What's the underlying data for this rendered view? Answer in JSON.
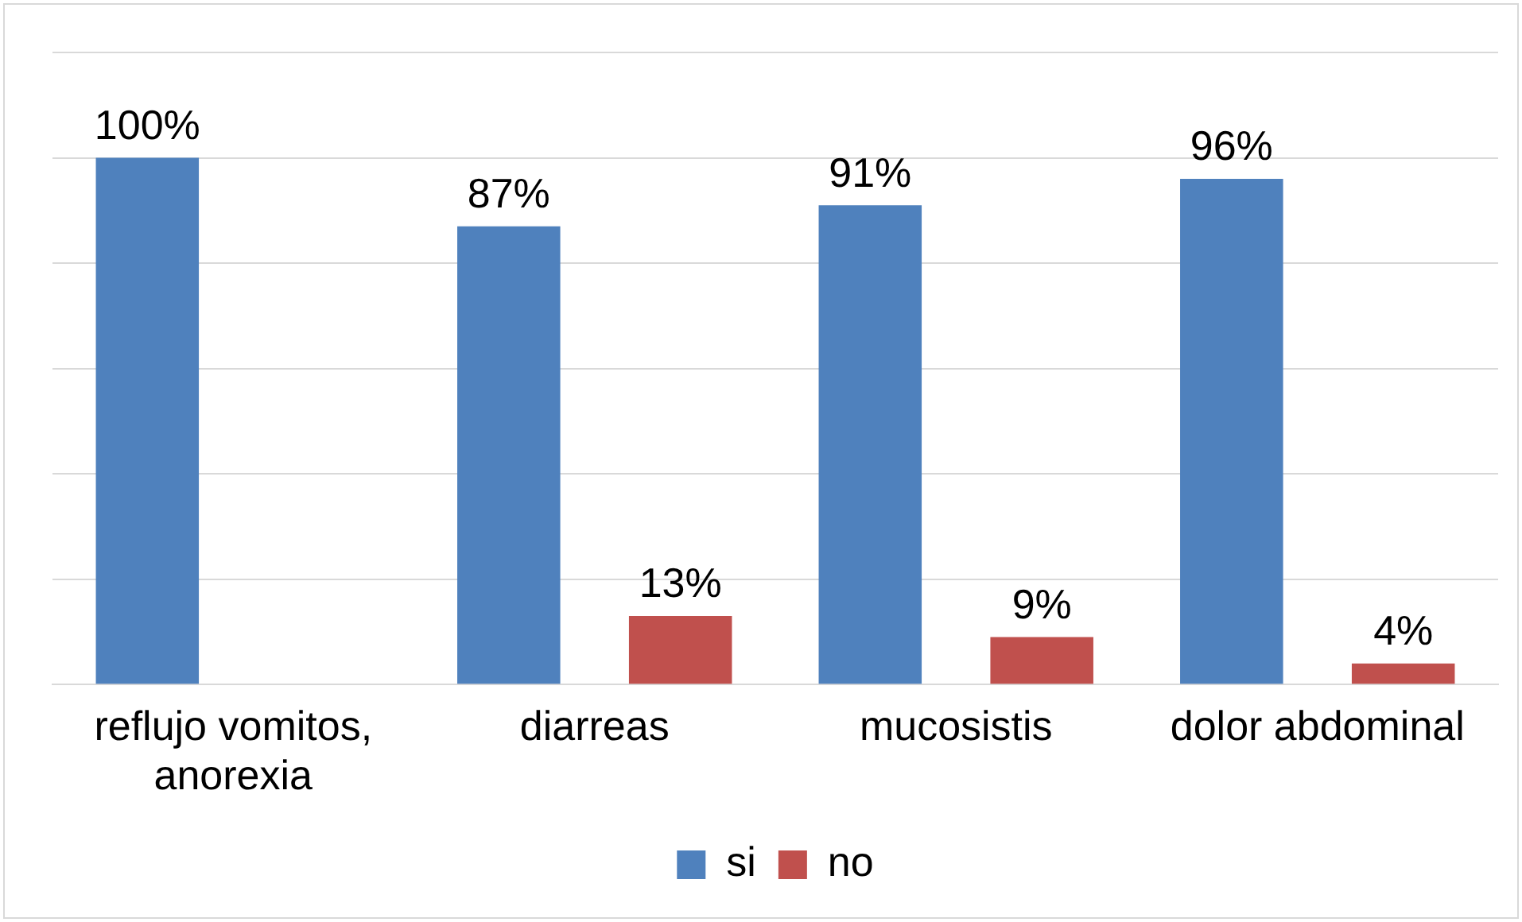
{
  "chart_data": {
    "type": "bar",
    "categories": [
      "reflujo vomitos, anorexia",
      "diarreas",
      "mucosistis",
      "dolor abdominal"
    ],
    "series": [
      {
        "name": "si",
        "color": "#4f81bd",
        "values": [
          100,
          87,
          91,
          96
        ],
        "value_labels": [
          "100%",
          "87%",
          "91%",
          "96%"
        ]
      },
      {
        "name": "no",
        "color": "#c0504d",
        "values": [
          null,
          13,
          9,
          4
        ],
        "value_labels": [
          null,
          "13%",
          "9%",
          "4%"
        ]
      }
    ],
    "ylim": [
      0,
      120
    ],
    "yticks": [
      0,
      20,
      40,
      60,
      80,
      100,
      120
    ],
    "tick_labels": "x",
    "grid": "y",
    "legend": "bottom"
  }
}
